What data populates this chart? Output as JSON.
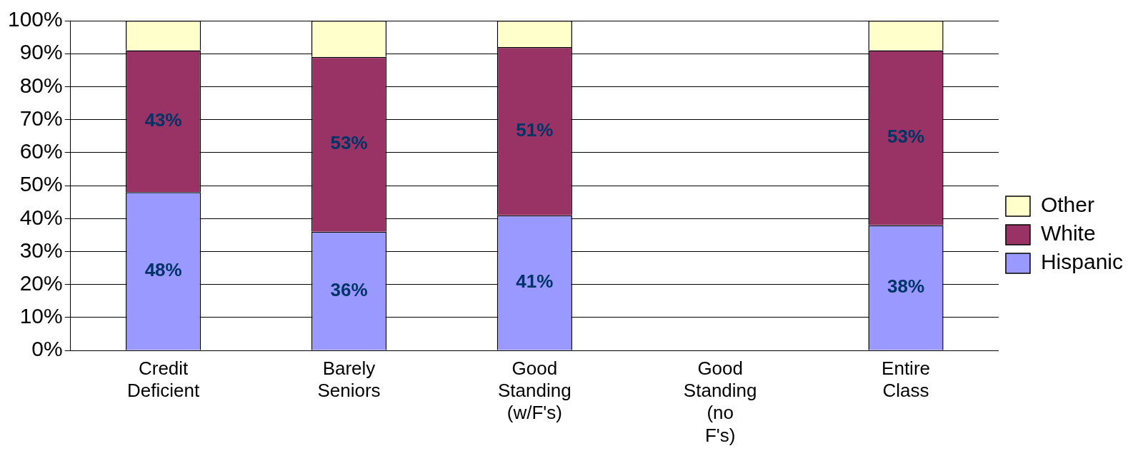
{
  "chart_data": {
    "type": "bar",
    "stacked": true,
    "categories": [
      "Credit Deficient",
      "Barely Seniors",
      "Good Standing (w/F's)",
      "Good Standing (no F's)",
      "Entire Class"
    ],
    "series": [
      {
        "name": "Hispanic",
        "color": "#9999ff",
        "values": [
          48,
          36,
          41,
          null,
          38
        ],
        "value_labels": [
          "48%",
          "36%",
          "41%",
          null,
          "38%"
        ]
      },
      {
        "name": "White",
        "color": "#993366",
        "values": [
          43,
          53,
          51,
          null,
          53
        ],
        "value_labels": [
          "43%",
          "53%",
          "51%",
          null,
          "53%"
        ]
      },
      {
        "name": "Other",
        "color": "#ffffcc",
        "values": [
          9,
          11,
          8,
          null,
          9
        ]
      }
    ],
    "ylim": [
      0,
      100
    ],
    "yticks": [
      {
        "value": 0,
        "label": "0%"
      },
      {
        "value": 10,
        "label": "10%"
      },
      {
        "value": 20,
        "label": "20%"
      },
      {
        "value": 30,
        "label": "30%"
      },
      {
        "value": 40,
        "label": "40%"
      },
      {
        "value": 50,
        "label": "50%"
      },
      {
        "value": 60,
        "label": "60%"
      },
      {
        "value": 70,
        "label": "70%"
      },
      {
        "value": 80,
        "label": "80%"
      },
      {
        "value": 90,
        "label": "90%"
      },
      {
        "value": 100,
        "label": "100%"
      }
    ],
    "grid": "y",
    "legend": "right"
  }
}
